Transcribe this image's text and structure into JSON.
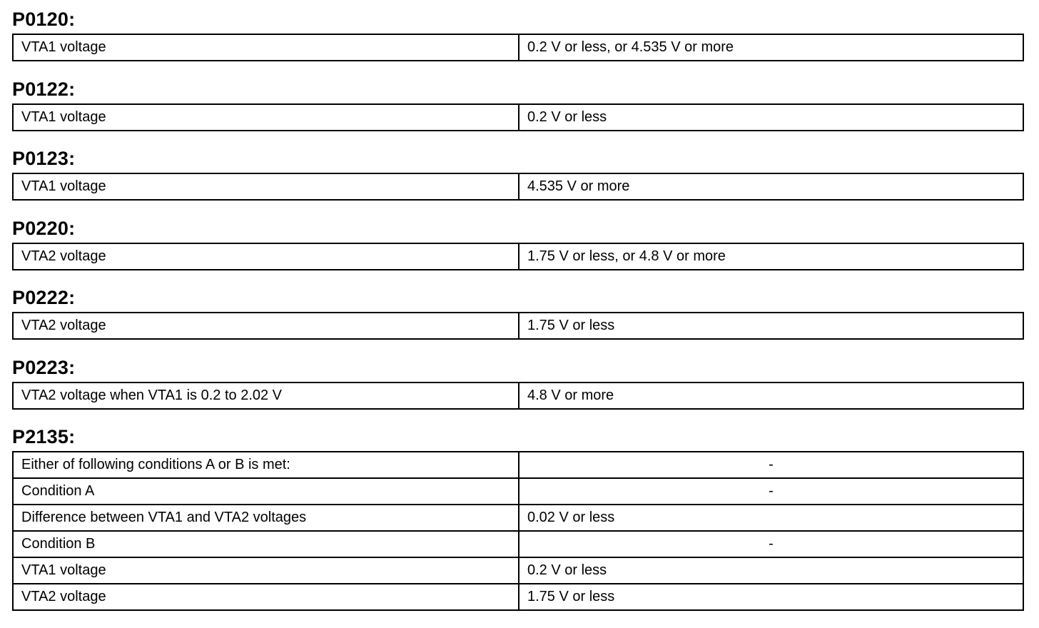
{
  "sections": [
    {
      "code": "P0120:",
      "rows": [
        [
          "VTA1 voltage",
          "0.2 V or less, or 4.535 V or more"
        ]
      ]
    },
    {
      "code": "P0122:",
      "rows": [
        [
          "VTA1 voltage",
          "0.2 V or less"
        ]
      ]
    },
    {
      "code": "P0123:",
      "rows": [
        [
          "VTA1 voltage",
          "4.535 V or more"
        ]
      ]
    },
    {
      "code": "P0220:",
      "rows": [
        [
          "VTA2 voltage",
          "1.75 V or less, or 4.8 V or more"
        ]
      ]
    },
    {
      "code": "P0222:",
      "rows": [
        [
          "VTA2 voltage",
          "1.75 V or less"
        ]
      ]
    },
    {
      "code": "P0223:",
      "rows": [
        [
          "VTA2 voltage when VTA1 is 0.2 to 2.02 V",
          "4.8 V or more"
        ]
      ]
    },
    {
      "code": "P2135:",
      "rows": [
        [
          "Either of following conditions A or B is met:",
          "-"
        ],
        [
          "Condition A",
          "-"
        ],
        [
          "Difference between VTA1 and VTA2 voltages",
          "0.02 V or less"
        ],
        [
          "Condition B",
          "-"
        ],
        [
          "VTA1 voltage",
          "0.2 V or less"
        ],
        [
          "VTA2 voltage",
          "1.75 V or less"
        ]
      ]
    }
  ]
}
